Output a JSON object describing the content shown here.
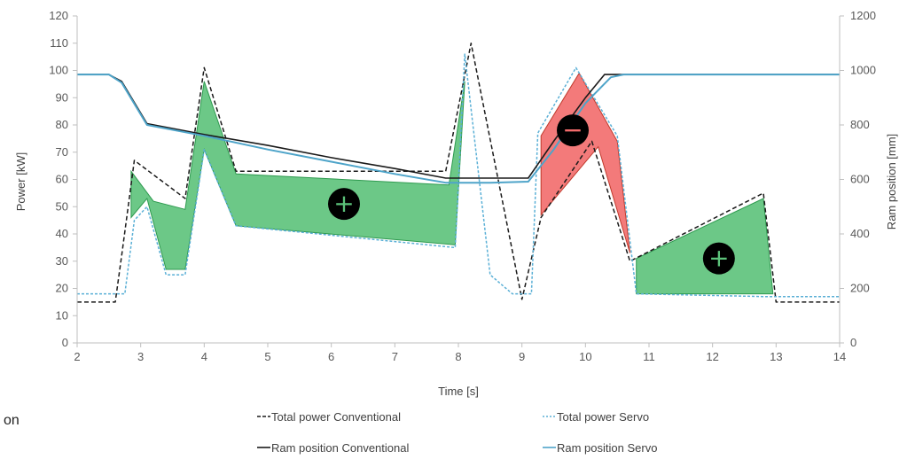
{
  "stray_text": "on",
  "colors": {
    "conventional": "#1a1a1a",
    "servo": "#5bb0d6",
    "ram_servo": "#4ea4c9",
    "gain_fill": "#5cc27a",
    "loss_fill": "#f26b6b",
    "gain_stroke": "#2e9a4f",
    "loss_stroke": "#c0392b"
  },
  "chart_data": {
    "type": "line",
    "xlabel": "Time [s]",
    "ylabel": "Power [kW]",
    "y2label": "Ram position [mm]",
    "xlim": [
      2,
      14
    ],
    "ylim": [
      0,
      120
    ],
    "y2lim": [
      0,
      1200
    ],
    "xticks": [
      "2",
      "3",
      "4",
      "5",
      "6",
      "7",
      "8",
      "9",
      "10",
      "11",
      "12",
      "13",
      "14"
    ],
    "yticks": [
      "0",
      "10",
      "20",
      "30",
      "40",
      "50",
      "60",
      "70",
      "80",
      "90",
      "100",
      "110",
      "120"
    ],
    "y2ticks": [
      "0",
      "200",
      "400",
      "600",
      "800",
      "1000",
      "1200"
    ],
    "grid": false,
    "legend_position": "bottom",
    "series": [
      {
        "name": "Total power Conventional",
        "axis": "left",
        "style": "dashed",
        "x": [
          2,
          2.6,
          2.7,
          2.9,
          3.7,
          4.0,
          4.5,
          7.8,
          8.2,
          9.0,
          9.3,
          10.1,
          10.7,
          12.8,
          13.0,
          14
        ],
        "y": [
          15,
          15,
          32,
          67,
          53,
          101,
          63,
          63,
          110,
          16,
          46,
          74,
          30,
          55,
          15,
          15
        ]
      },
      {
        "name": "Total power Servo",
        "axis": "left",
        "style": "dotted",
        "x": [
          2,
          2.75,
          2.9,
          3.1,
          3.4,
          3.7,
          4.0,
          4.5,
          7.95,
          8.1,
          8.5,
          8.85,
          9.15,
          9.25,
          9.85,
          10.5,
          10.8,
          12.8,
          13.0,
          14
        ],
        "y": [
          18,
          18,
          45,
          50,
          25,
          25,
          71,
          43,
          35,
          106,
          25,
          18,
          18,
          77,
          101,
          76,
          18,
          17,
          17,
          17
        ]
      },
      {
        "name": "Ram position Conventional",
        "axis": "right",
        "style": "solid",
        "x": [
          2,
          2.5,
          2.7,
          3.1,
          4.0,
          5.0,
          6.0,
          7.0,
          7.8,
          8.5,
          9.1,
          9.5,
          10.0,
          10.3,
          10.5,
          14
        ],
        "y": [
          985,
          985,
          960,
          805,
          765,
          725,
          680,
          640,
          605,
          605,
          605,
          740,
          900,
          985,
          985,
          985
        ]
      },
      {
        "name": "Ram position Servo",
        "axis": "right",
        "style": "solid",
        "x": [
          2,
          2.5,
          2.7,
          3.1,
          4.0,
          5.0,
          6.0,
          7.0,
          7.8,
          8.5,
          9.1,
          9.5,
          10.0,
          10.4,
          10.6,
          14
        ],
        "y": [
          985,
          985,
          955,
          800,
          760,
          710,
          665,
          620,
          588,
          588,
          592,
          710,
          880,
          975,
          985,
          985
        ]
      }
    ],
    "regions": [
      {
        "kind": "gain",
        "label": "+",
        "marker": [
          6.2,
          51
        ],
        "polygon": [
          [
            2.85,
            63
          ],
          [
            3.2,
            52
          ],
          [
            3.7,
            49
          ],
          [
            4.0,
            96
          ],
          [
            4.5,
            62
          ],
          [
            7.85,
            58
          ],
          [
            8.1,
            96
          ],
          [
            7.95,
            36
          ],
          [
            4.5,
            43
          ],
          [
            4.0,
            71
          ],
          [
            3.7,
            27
          ],
          [
            3.4,
            27
          ],
          [
            3.1,
            53
          ],
          [
            2.85,
            46
          ]
        ]
      },
      {
        "kind": "loss",
        "label": "−",
        "marker": [
          9.8,
          78
        ],
        "polygon": [
          [
            9.3,
            76
          ],
          [
            9.9,
            99
          ],
          [
            10.5,
            74
          ],
          [
            10.7,
            33
          ],
          [
            10.2,
            72
          ],
          [
            9.3,
            47
          ]
        ]
      },
      {
        "kind": "gain",
        "label": "+",
        "marker": [
          12.1,
          31
        ],
        "polygon": [
          [
            10.8,
            31
          ],
          [
            12.8,
            53
          ],
          [
            12.95,
            18
          ],
          [
            10.8,
            18
          ]
        ]
      }
    ]
  }
}
